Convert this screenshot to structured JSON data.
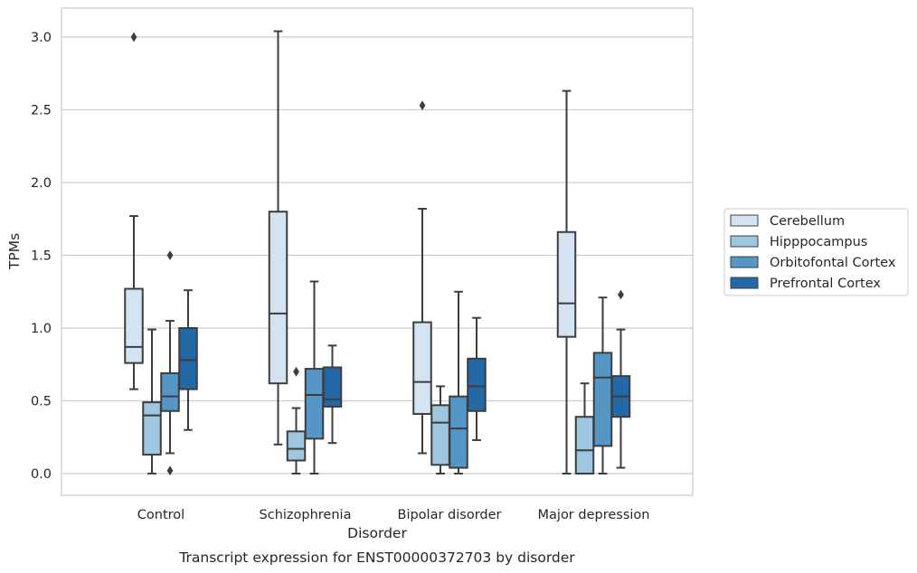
{
  "chart_data": {
    "type": "box",
    "title": "",
    "caption": "Transcript expression for ENST00000372703 by disorder",
    "xlabel": "Disorder",
    "ylabel": "TPMs",
    "ylim": [
      -0.15,
      3.2
    ],
    "yticks": [
      "0.0",
      "0.5",
      "1.0",
      "1.5",
      "2.0",
      "2.5",
      "3.0"
    ],
    "grid": true,
    "legend_position": "right",
    "categories": [
      "Control",
      "Schizophrenia",
      "Bipolar disorder",
      "Major depression"
    ],
    "series": [
      {
        "name": "Cerebellum",
        "color": "#d4e3f2",
        "boxes": [
          {
            "whislo": 0.58,
            "q1": 0.76,
            "med": 0.87,
            "q3": 1.27,
            "whishi": 1.77,
            "fliers": [
              3.0
            ]
          },
          {
            "whislo": 0.2,
            "q1": 0.62,
            "med": 1.1,
            "q3": 1.8,
            "whishi": 3.04,
            "fliers": []
          },
          {
            "whislo": 0.14,
            "q1": 0.41,
            "med": 0.63,
            "q3": 1.04,
            "whishi": 1.82,
            "fliers": [
              2.53
            ]
          },
          {
            "whislo": 0.0,
            "q1": 0.94,
            "med": 1.17,
            "q3": 1.66,
            "whishi": 2.63,
            "fliers": []
          }
        ]
      },
      {
        "name": "Hipppocampus",
        "color": "#9dc6e0",
        "boxes": [
          {
            "whislo": 0.0,
            "q1": 0.13,
            "med": 0.4,
            "q3": 0.49,
            "whishi": 0.99,
            "fliers": []
          },
          {
            "whislo": 0.0,
            "q1": 0.09,
            "med": 0.17,
            "q3": 0.29,
            "whishi": 0.45,
            "fliers": [
              0.7
            ]
          },
          {
            "whislo": 0.0,
            "q1": 0.06,
            "med": 0.35,
            "q3": 0.47,
            "whishi": 0.6,
            "fliers": []
          },
          {
            "whislo": 0.0,
            "q1": 0.0,
            "med": 0.16,
            "q3": 0.39,
            "whishi": 0.62,
            "fliers": []
          }
        ]
      },
      {
        "name": "Orbitofontal Cortex",
        "color": "#5497c6",
        "boxes": [
          {
            "whislo": 0.14,
            "q1": 0.43,
            "med": 0.53,
            "q3": 0.69,
            "whishi": 1.05,
            "fliers": [
              1.5,
              0.02
            ]
          },
          {
            "whislo": 0.0,
            "q1": 0.24,
            "med": 0.54,
            "q3": 0.72,
            "whishi": 1.32,
            "fliers": []
          },
          {
            "whislo": 0.0,
            "q1": 0.04,
            "med": 0.31,
            "q3": 0.53,
            "whishi": 1.25,
            "fliers": []
          },
          {
            "whislo": 0.0,
            "q1": 0.19,
            "med": 0.66,
            "q3": 0.83,
            "whishi": 1.21,
            "fliers": []
          }
        ]
      },
      {
        "name": "Prefrontal Cortex",
        "color": "#2568a8",
        "boxes": [
          {
            "whislo": 0.3,
            "q1": 0.58,
            "med": 0.78,
            "q3": 1.0,
            "whishi": 1.26,
            "fliers": []
          },
          {
            "whislo": 0.21,
            "q1": 0.46,
            "med": 0.51,
            "q3": 0.73,
            "whishi": 0.88,
            "fliers": []
          },
          {
            "whislo": 0.23,
            "q1": 0.43,
            "med": 0.6,
            "q3": 0.79,
            "whishi": 1.07,
            "fliers": []
          },
          {
            "whislo": 0.04,
            "q1": 0.39,
            "med": 0.53,
            "q3": 0.67,
            "whishi": 0.99,
            "fliers": [
              1.23
            ]
          }
        ]
      }
    ]
  }
}
